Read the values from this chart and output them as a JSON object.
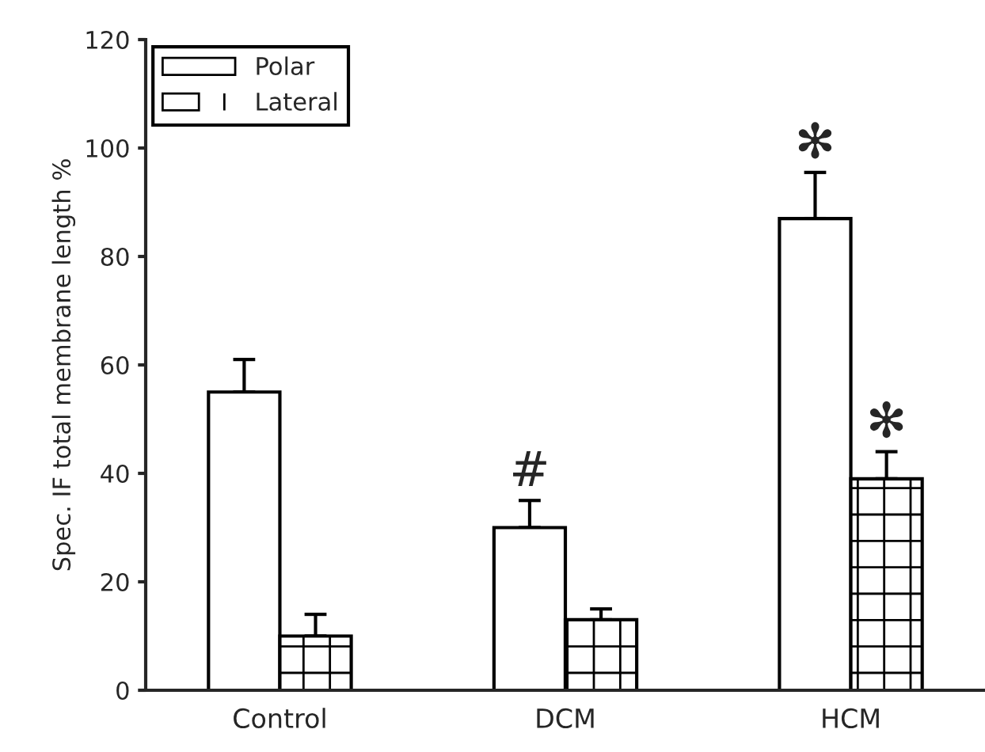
{
  "chart_data": {
    "type": "bar",
    "ylabel": "Spec. IF total membrane length %",
    "categories": [
      "Control",
      "DCM",
      "HCM"
    ],
    "series": [
      {
        "name": "Polar",
        "color": "#ffffff",
        "values": [
          55,
          30,
          87
        ],
        "errors": [
          [
            55,
            61
          ],
          [
            30,
            35
          ],
          [
            87,
            95.5
          ]
        ],
        "value_labels": [
          null,
          "#",
          "✻"
        ]
      },
      {
        "name": "Lateral",
        "color": "#ffffff",
        "values": [
          10,
          13,
          39
        ],
        "errors": [
          [
            10,
            14
          ],
          [
            13,
            15
          ],
          [
            39,
            44
          ]
        ],
        "value_labels": [
          null,
          null,
          "✻"
        ]
      }
    ],
    "ylim": [
      0,
      120
    ],
    "yticks": [
      0,
      20,
      40,
      60,
      80,
      100,
      120
    ],
    "grid": false,
    "legend": "top left"
  }
}
